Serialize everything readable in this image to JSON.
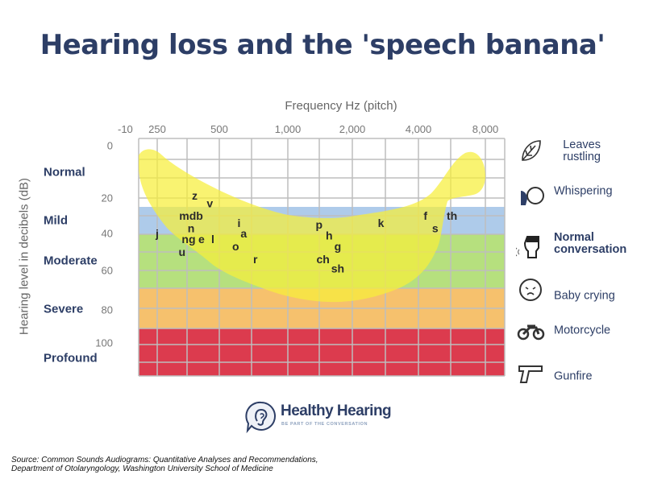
{
  "title": "Hearing loss and the 'speech banana'",
  "chart_data": {
    "type": "audiogram",
    "xlabel": "Frequency Hz (pitch)",
    "ylabel": "Hearing level in decibels (dB)",
    "x_ticks": [
      "250",
      "500",
      "1,000",
      "2,000",
      "4,000",
      "8,000"
    ],
    "x_tick_values": [
      250,
      500,
      1000,
      2000,
      4000,
      8000
    ],
    "y_ticks": [
      "-10",
      "0",
      "20",
      "40",
      "60",
      "80",
      "100"
    ],
    "y_tick_values": [
      -10,
      0,
      20,
      40,
      60,
      80,
      100
    ],
    "x_scale": "log",
    "y_inverted": true,
    "grid": true,
    "bands": [
      {
        "label": "Normal",
        "from_db": -10,
        "to_db": 25,
        "color": "#ffffff"
      },
      {
        "label": "Mild",
        "from_db": 25,
        "to_db": 40,
        "color": "#aecbea"
      },
      {
        "label": "Moderate",
        "from_db": 40,
        "to_db": 70,
        "color": "#b6e07e"
      },
      {
        "label": "Severe",
        "from_db": 70,
        "to_db": 90,
        "color": "#f6c16d"
      },
      {
        "label": "Profound",
        "from_db": 90,
        "to_db": 120,
        "color": "#dc3b4e"
      }
    ],
    "banana_color": "#f7ee3a",
    "speech_sounds": [
      {
        "label": "z",
        "hz": 380,
        "db": 19
      },
      {
        "label": "v",
        "hz": 450,
        "db": 23
      },
      {
        "label": "mdb",
        "hz": 365,
        "db": 30
      },
      {
        "label": "n",
        "hz": 365,
        "db": 37
      },
      {
        "label": "j",
        "hz": 250,
        "db": 40
      },
      {
        "label": "i",
        "hz": 610,
        "db": 34
      },
      {
        "label": "a",
        "hz": 640,
        "db": 40
      },
      {
        "label": "ng",
        "hz": 355,
        "db": 43
      },
      {
        "label": "e",
        "hz": 410,
        "db": 43
      },
      {
        "label": "l",
        "hz": 465,
        "db": 43
      },
      {
        "label": "o",
        "hz": 590,
        "db": 47
      },
      {
        "label": "u",
        "hz": 330,
        "db": 50
      },
      {
        "label": "r",
        "hz": 720,
        "db": 54
      },
      {
        "label": "p",
        "hz": 1400,
        "db": 35
      },
      {
        "label": "h",
        "hz": 1560,
        "db": 41
      },
      {
        "label": "g",
        "hz": 1710,
        "db": 47
      },
      {
        "label": "ch",
        "hz": 1460,
        "db": 54
      },
      {
        "label": "sh",
        "hz": 1710,
        "db": 59
      },
      {
        "label": "k",
        "hz": 2700,
        "db": 34
      },
      {
        "label": "f",
        "hz": 4300,
        "db": 30
      },
      {
        "label": "s",
        "hz": 4760,
        "db": 37
      },
      {
        "label": "th",
        "hz": 5660,
        "db": 30
      }
    ]
  },
  "common_sounds": [
    {
      "label": "Leaves rustling",
      "icon": "leaf-icon",
      "bold": false
    },
    {
      "label": "Whispering",
      "icon": "whisper-icon",
      "bold": false
    },
    {
      "label": "Normal conversation",
      "icon": "talking-head-icon",
      "bold": true
    },
    {
      "label": "Baby crying",
      "icon": "baby-icon",
      "bold": false
    },
    {
      "label": "Motorcycle",
      "icon": "motorcycle-icon",
      "bold": false
    },
    {
      "label": "Gunfire",
      "icon": "gun-icon",
      "bold": false
    }
  ],
  "logo": {
    "name": "Healthy Hearing",
    "tagline": "BE PART OF THE CONVERSATION"
  },
  "source": "Source: Common Sounds Audiograms: Quantitative Analyses and Recommendations, Department of Otolaryngology, Washington University School of Medicine",
  "source_lines": [
    "Source: Common Sounds Audiograms: Quantitative Analyses and Recommendations,",
    "Department of Otolaryngology, Washington University School of Medicine"
  ]
}
